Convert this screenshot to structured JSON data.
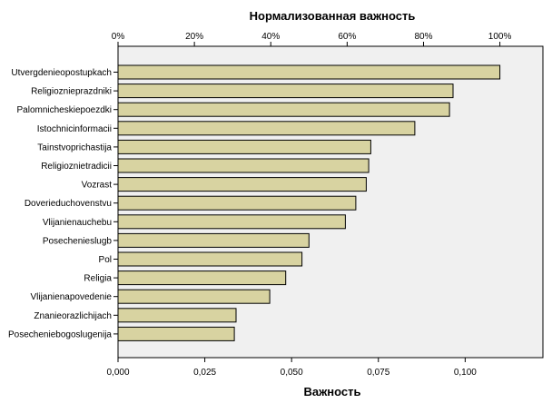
{
  "chart_data": {
    "type": "bar",
    "orientation": "horizontal",
    "title": "Нормализованная важность",
    "xlabel": "Важность",
    "categories": [
      "Utvergdenieopostupkach",
      "Religioznieprazdniki",
      "Palomnicheskiepoezdki",
      "Istochnicinformacii",
      "Tainstvoprichastija",
      "Religioznietradicii",
      "Vozrast",
      "Doverieduchovenstvu",
      "Vlijanienauchebu",
      "Posechenieslugb",
      "Pol",
      "Religia",
      "Vlijanienapovedenie",
      "Znanieorazlichijach",
      "Posecheniebogoslugenija"
    ],
    "values": [
      0.11,
      0.0965,
      0.0955,
      0.0855,
      0.0728,
      0.0722,
      0.0715,
      0.0685,
      0.0655,
      0.055,
      0.053,
      0.0483,
      0.0437,
      0.034,
      0.0335
    ],
    "xlim": [
      0,
      0.1224
    ],
    "bottom_ticks": [
      {
        "value": 0.0,
        "label": "0,000"
      },
      {
        "value": 0.025,
        "label": "0,025"
      },
      {
        "value": 0.05,
        "label": "0,050"
      },
      {
        "value": 0.075,
        "label": "0,075"
      },
      {
        "value": 0.1,
        "label": "0,100"
      }
    ],
    "top_ticks": [
      {
        "value": 0.0,
        "label": "0%"
      },
      {
        "value": 0.022,
        "label": "20%"
      },
      {
        "value": 0.044,
        "label": "40%"
      },
      {
        "value": 0.066,
        "label": "60%"
      },
      {
        "value": 0.088,
        "label": "80%"
      },
      {
        "value": 0.11,
        "label": "100%"
      }
    ],
    "grid": false,
    "legend": "none",
    "colors": {
      "bar_fill": "#d8d3a1",
      "bar_stroke": "#000000",
      "plot_background": "#f0f0f0",
      "axis": "#000000"
    }
  }
}
